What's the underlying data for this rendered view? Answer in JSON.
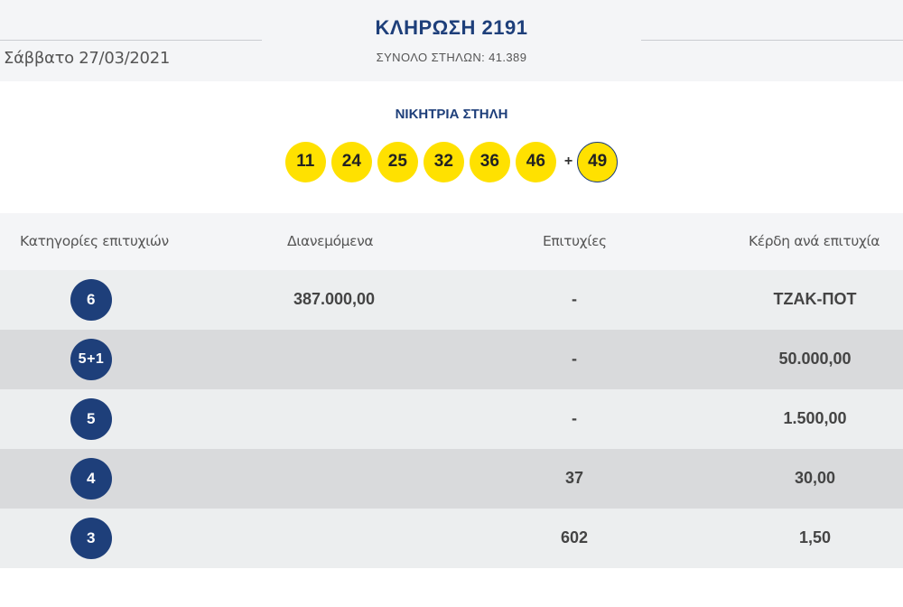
{
  "header": {
    "date": "Σάββατο 27/03/2021",
    "title": "ΚΛΗΡΩΣΗ 2191",
    "total_columns": "ΣΥΝΟΛΟ ΣΤΗΛΩΝ: 41.389"
  },
  "winning": {
    "label": "ΝΙΚΗΤΡΙΑ ΣΤΗΛΗ",
    "numbers": [
      "11",
      "24",
      "25",
      "32",
      "36",
      "46"
    ],
    "plus": "+",
    "joker": "49"
  },
  "table": {
    "headers": {
      "category": "Κατηγορίες επιτυχιών",
      "distributed": "Διανεμόμενα",
      "winners": "Επιτυχίες",
      "prize": "Κέρδη ανά επιτυχία"
    },
    "rows": [
      {
        "category": "6",
        "distributed": "387.000,00",
        "winners": "-",
        "prize": "ΤΖΑΚ-ΠΟΤ"
      },
      {
        "category": "5+1",
        "distributed": "",
        "winners": "-",
        "prize": "50.000,00"
      },
      {
        "category": "5",
        "distributed": "",
        "winners": "-",
        "prize": "1.500,00"
      },
      {
        "category": "4",
        "distributed": "",
        "winners": "37",
        "prize": "30,00"
      },
      {
        "category": "3",
        "distributed": "",
        "winners": "602",
        "prize": "1,50"
      }
    ]
  },
  "colors": {
    "brand_blue": "#1e3f7a",
    "ball_yellow": "#ffe100"
  }
}
